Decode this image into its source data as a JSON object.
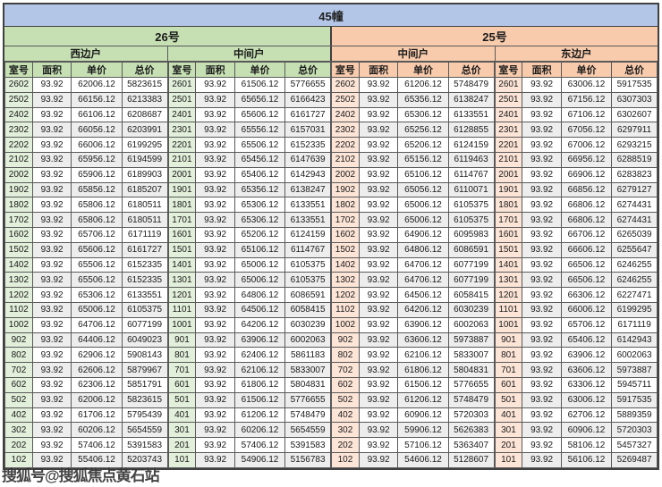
{
  "title": "45幢",
  "watermark": "搜狐号@搜狐焦点黄石站",
  "colors": {
    "title_bg": "#b4c6e7",
    "group_26_bg": "#c6e0b4",
    "group_25_bg": "#f8cbad",
    "room_tint_26": "#e2efda",
    "room_tint_25": "#fce4d6",
    "stripe": "#ededed",
    "border": "#595959"
  },
  "table": {
    "groups": [
      {
        "label": "26号",
        "units": [
          "西边户",
          "中间户"
        ]
      },
      {
        "label": "25号",
        "units": [
          "中间户",
          "东边户"
        ]
      }
    ],
    "column_headers": [
      "室号",
      "面积",
      "单价",
      "总价"
    ],
    "sections": [
      {
        "group": "26号",
        "unit": "西边户",
        "theme": "green",
        "rows": [
          [
            "2602",
            "93.92",
            "62006.12",
            "5823615"
          ],
          [
            "2502",
            "93.92",
            "66156.12",
            "6213383"
          ],
          [
            "2402",
            "93.92",
            "66106.12",
            "6208687"
          ],
          [
            "2302",
            "93.92",
            "66056.12",
            "6203991"
          ],
          [
            "2202",
            "93.92",
            "66006.12",
            "6199295"
          ],
          [
            "2102",
            "93.92",
            "65956.12",
            "6194599"
          ],
          [
            "2002",
            "93.92",
            "65906.12",
            "6189903"
          ],
          [
            "1902",
            "93.92",
            "65856.12",
            "6185207"
          ],
          [
            "1802",
            "93.92",
            "65806.12",
            "6180511"
          ],
          [
            "1702",
            "93.92",
            "65806.12",
            "6180511"
          ],
          [
            "1602",
            "93.92",
            "65706.12",
            "6171119"
          ],
          [
            "1502",
            "93.92",
            "65606.12",
            "6161727"
          ],
          [
            "1402",
            "93.92",
            "65506.12",
            "6152335"
          ],
          [
            "1302",
            "93.92",
            "65506.12",
            "6152335"
          ],
          [
            "1202",
            "93.92",
            "65306.12",
            "6133551"
          ],
          [
            "1102",
            "93.92",
            "65006.12",
            "6105375"
          ],
          [
            "1002",
            "93.92",
            "64706.12",
            "6077199"
          ],
          [
            "902",
            "93.92",
            "64406.12",
            "6049023"
          ],
          [
            "802",
            "93.92",
            "62906.12",
            "5908143"
          ],
          [
            "702",
            "93.92",
            "62606.12",
            "5879967"
          ],
          [
            "602",
            "93.92",
            "62306.12",
            "5851791"
          ],
          [
            "502",
            "93.92",
            "62006.12",
            "5823615"
          ],
          [
            "402",
            "93.92",
            "61706.12",
            "5795439"
          ],
          [
            "302",
            "93.92",
            "60206.12",
            "5654559"
          ],
          [
            "202",
            "93.92",
            "57406.12",
            "5391583"
          ],
          [
            "102",
            "93.92",
            "55406.12",
            "5203743"
          ]
        ]
      },
      {
        "group": "26号",
        "unit": "中间户",
        "theme": "green",
        "rows": [
          [
            "2601",
            "93.92",
            "61506.12",
            "5776655"
          ],
          [
            "2501",
            "93.92",
            "65656.12",
            "6166423"
          ],
          [
            "2401",
            "93.92",
            "65606.12",
            "6161727"
          ],
          [
            "2301",
            "93.92",
            "65556.12",
            "6157031"
          ],
          [
            "2201",
            "93.92",
            "65506.12",
            "6152335"
          ],
          [
            "2101",
            "93.92",
            "65456.12",
            "6147639"
          ],
          [
            "2001",
            "93.92",
            "65406.12",
            "6142943"
          ],
          [
            "1901",
            "93.92",
            "65356.12",
            "6138247"
          ],
          [
            "1801",
            "93.92",
            "65306.12",
            "6133551"
          ],
          [
            "1701",
            "93.92",
            "65306.12",
            "6133551"
          ],
          [
            "1601",
            "93.92",
            "65206.12",
            "6124159"
          ],
          [
            "1501",
            "93.92",
            "65106.12",
            "6114767"
          ],
          [
            "1401",
            "93.92",
            "65006.12",
            "6105375"
          ],
          [
            "1301",
            "93.92",
            "65006.12",
            "6105375"
          ],
          [
            "1201",
            "93.92",
            "64806.12",
            "6086591"
          ],
          [
            "1101",
            "93.92",
            "64506.12",
            "6058415"
          ],
          [
            "1001",
            "93.92",
            "64206.12",
            "6030239"
          ],
          [
            "901",
            "93.92",
            "63906.12",
            "6002063"
          ],
          [
            "801",
            "93.92",
            "62406.12",
            "5861183"
          ],
          [
            "701",
            "93.92",
            "62106.12",
            "5833007"
          ],
          [
            "601",
            "93.92",
            "61806.12",
            "5804831"
          ],
          [
            "501",
            "93.92",
            "61506.12",
            "5776655"
          ],
          [
            "401",
            "93.92",
            "61206.12",
            "5748479"
          ],
          [
            "301",
            "93.92",
            "60206.12",
            "5654559"
          ],
          [
            "201",
            "93.92",
            "57406.12",
            "5391583"
          ],
          [
            "101",
            "93.92",
            "54906.12",
            "5156783"
          ]
        ]
      },
      {
        "group": "25号",
        "unit": "中间户",
        "theme": "peach",
        "rows": [
          [
            "2602",
            "93.92",
            "61206.12",
            "5748479"
          ],
          [
            "2502",
            "93.92",
            "65356.12",
            "6138247"
          ],
          [
            "2402",
            "93.92",
            "65306.12",
            "6133551"
          ],
          [
            "2302",
            "93.92",
            "65256.12",
            "6128855"
          ],
          [
            "2202",
            "93.92",
            "65206.12",
            "6124159"
          ],
          [
            "2102",
            "93.92",
            "65156.12",
            "6119463"
          ],
          [
            "2002",
            "93.92",
            "65106.12",
            "6114767"
          ],
          [
            "1902",
            "93.92",
            "65056.12",
            "6110071"
          ],
          [
            "1802",
            "93.92",
            "65006.12",
            "6105375"
          ],
          [
            "1702",
            "93.92",
            "65006.12",
            "6105375"
          ],
          [
            "1602",
            "93.92",
            "64906.12",
            "6095983"
          ],
          [
            "1502",
            "93.92",
            "64806.12",
            "6086591"
          ],
          [
            "1402",
            "93.92",
            "64706.12",
            "6077199"
          ],
          [
            "1302",
            "93.92",
            "64706.12",
            "6077199"
          ],
          [
            "1202",
            "93.92",
            "64506.12",
            "6058415"
          ],
          [
            "1102",
            "93.92",
            "64206.12",
            "6030239"
          ],
          [
            "1002",
            "93.92",
            "63906.12",
            "6002063"
          ],
          [
            "902",
            "93.92",
            "63606.12",
            "5973887"
          ],
          [
            "802",
            "93.92",
            "62106.12",
            "5833007"
          ],
          [
            "702",
            "93.92",
            "61806.12",
            "5804831"
          ],
          [
            "602",
            "93.92",
            "61506.12",
            "5776655"
          ],
          [
            "502",
            "93.92",
            "61206.12",
            "5748479"
          ],
          [
            "402",
            "93.92",
            "60906.12",
            "5720303"
          ],
          [
            "302",
            "93.92",
            "59906.12",
            "5626383"
          ],
          [
            "202",
            "93.92",
            "57106.12",
            "5363407"
          ],
          [
            "102",
            "93.92",
            "54606.12",
            "5128607"
          ]
        ]
      },
      {
        "group": "25号",
        "unit": "东边户",
        "theme": "peach",
        "rows": [
          [
            "2601",
            "93.92",
            "63006.12",
            "5917535"
          ],
          [
            "2501",
            "93.92",
            "67156.12",
            "6307303"
          ],
          [
            "2401",
            "93.92",
            "67106.12",
            "6302607"
          ],
          [
            "2301",
            "93.92",
            "67056.12",
            "6297911"
          ],
          [
            "2201",
            "93.92",
            "67006.12",
            "6293215"
          ],
          [
            "2101",
            "93.92",
            "66956.12",
            "6288519"
          ],
          [
            "2001",
            "93.92",
            "66906.12",
            "6283823"
          ],
          [
            "1901",
            "93.92",
            "66856.12",
            "6279127"
          ],
          [
            "1801",
            "93.92",
            "66806.12",
            "6274431"
          ],
          [
            "1701",
            "93.92",
            "66806.12",
            "6274431"
          ],
          [
            "1601",
            "93.92",
            "66706.12",
            "6265039"
          ],
          [
            "1501",
            "93.92",
            "66606.12",
            "6255647"
          ],
          [
            "1401",
            "93.92",
            "66506.12",
            "6246255"
          ],
          [
            "1301",
            "93.92",
            "66506.12",
            "6246255"
          ],
          [
            "1201",
            "93.92",
            "66306.12",
            "6227471"
          ],
          [
            "1101",
            "93.92",
            "66006.12",
            "6199295"
          ],
          [
            "1001",
            "93.92",
            "65706.12",
            "6171119"
          ],
          [
            "901",
            "93.92",
            "65406.12",
            "6142943"
          ],
          [
            "801",
            "93.92",
            "63906.12",
            "6002063"
          ],
          [
            "701",
            "93.92",
            "63606.12",
            "5973887"
          ],
          [
            "601",
            "93.92",
            "63306.12",
            "5945711"
          ],
          [
            "501",
            "93.92",
            "63006.12",
            "5917535"
          ],
          [
            "401",
            "93.92",
            "62706.12",
            "5889359"
          ],
          [
            "301",
            "93.92",
            "60906.12",
            "5720303"
          ],
          [
            "201",
            "93.92",
            "58106.12",
            "5457327"
          ],
          [
            "101",
            "93.92",
            "56106.12",
            "5269487"
          ]
        ]
      }
    ]
  }
}
